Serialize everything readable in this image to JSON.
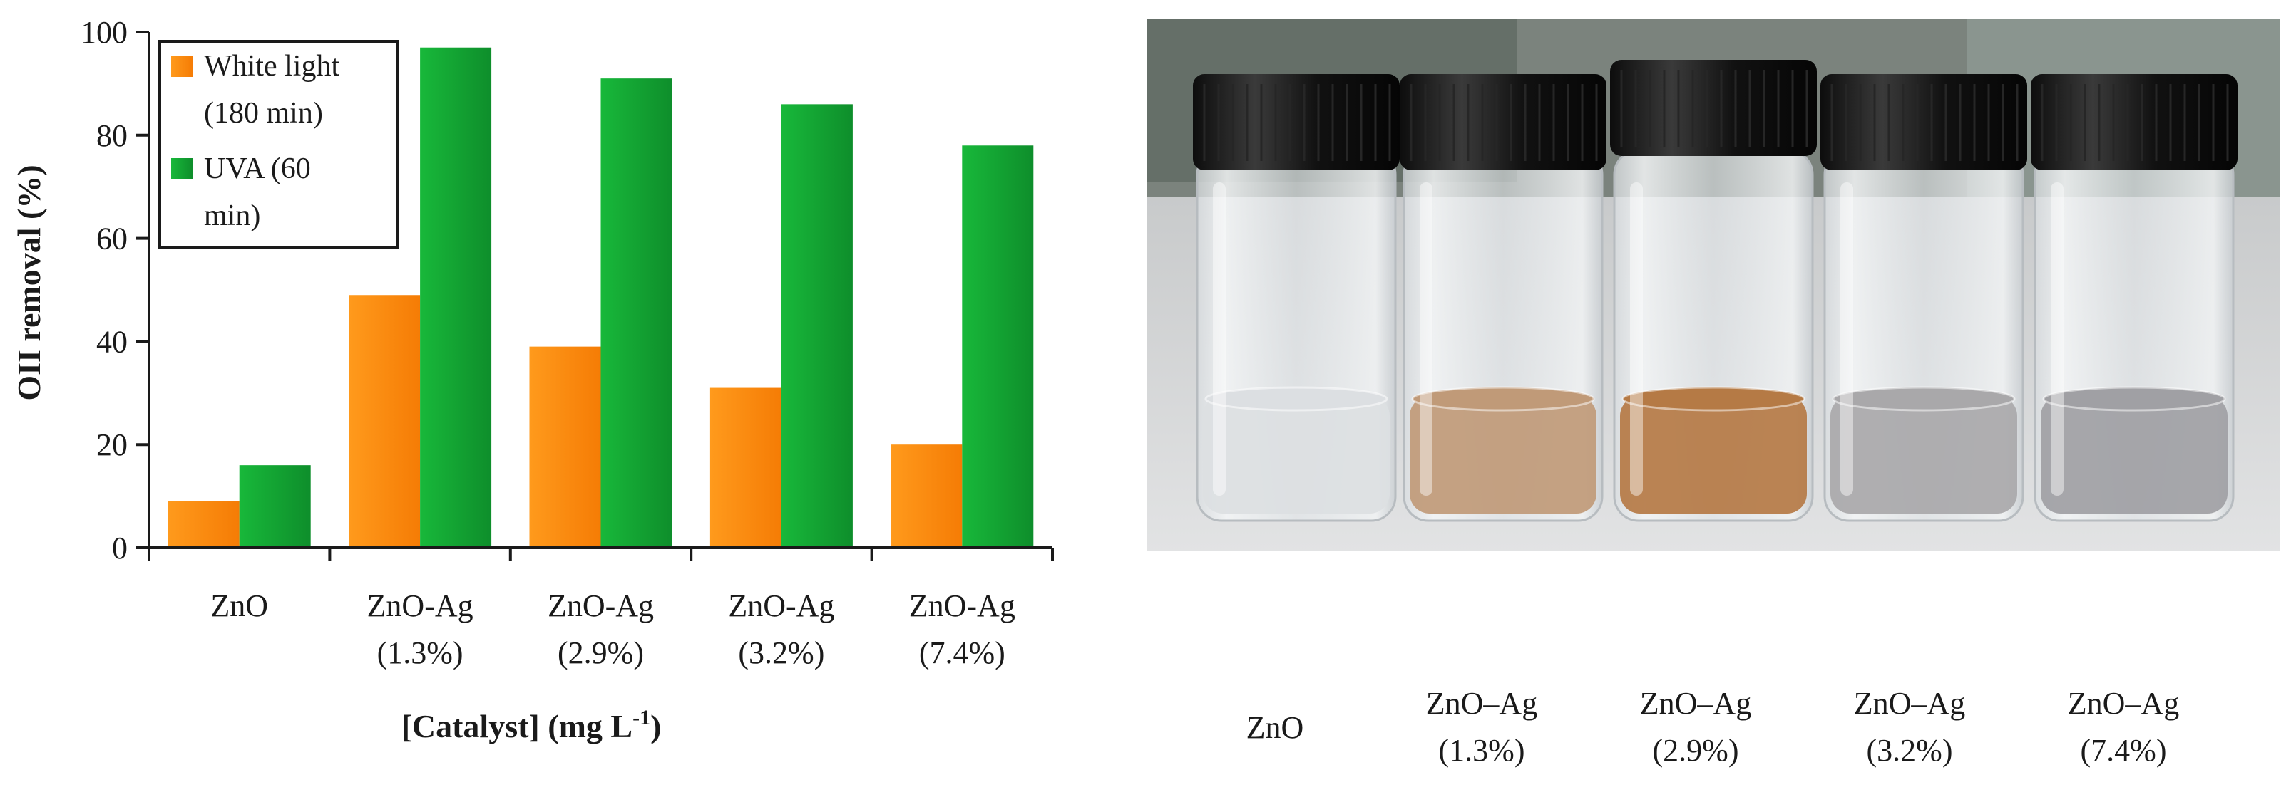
{
  "chart_data": {
    "type": "bar",
    "categories": [
      [
        "ZnO"
      ],
      [
        "ZnO-Ag",
        "(1.3%)"
      ],
      [
        "ZnO-Ag",
        "(2.9%)"
      ],
      [
        "ZnO-Ag",
        "(3.2%)"
      ],
      [
        "ZnO-Ag",
        "(7.4%)"
      ]
    ],
    "series": [
      {
        "name": [
          "White light",
          "(180 min)"
        ],
        "values": [
          9,
          49,
          39,
          31,
          20
        ],
        "color": "#ff8c0f"
      },
      {
        "name": [
          "UVA (60",
          "min)"
        ],
        "values": [
          16,
          97,
          91,
          86,
          78
        ],
        "color": "#1aa535"
      }
    ],
    "ylabel": "OII removal (%)",
    "xlabel": {
      "main": "[Catalyst] (mg L",
      "sup": "-1",
      "close": ")"
    },
    "ylim": [
      0,
      100
    ],
    "yticks": [
      0,
      20,
      40,
      60,
      80,
      100
    ],
    "grid": false,
    "legend": "top-left"
  },
  "photo": {
    "labels": [
      [
        "ZnO"
      ],
      [
        "ZnO–Ag",
        "(1.3%)"
      ],
      [
        "ZnO–Ag",
        "(2.9%)"
      ],
      [
        "ZnO–Ag",
        "(3.2%)"
      ],
      [
        "ZnO–Ag",
        "(7.4%)"
      ]
    ],
    "liquid_colors": [
      "#dcdfe2",
      "#c09a78",
      "#b57a45",
      "#a9a8aa",
      "#a0a0a4"
    ]
  }
}
